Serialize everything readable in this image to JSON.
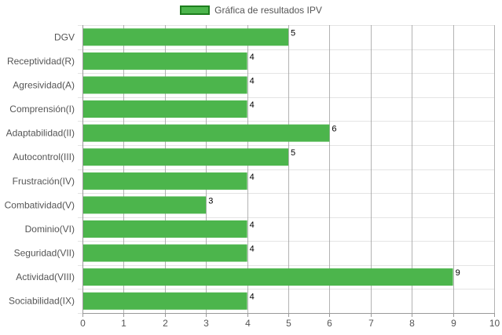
{
  "chart_data": {
    "type": "bar",
    "orientation": "horizontal",
    "categories": [
      "DGV",
      "Receptividad(R)",
      "Agresividad(A)",
      "Comprensión(I)",
      "Adaptabilidad(II)",
      "Autocontrol(III)",
      "Frustración(IV)",
      "Combatividad(V)",
      "Dominio(VI)",
      "Seguridad(VII)",
      "Actividad(VIII)",
      "Sociabilidad(IX)"
    ],
    "series": [
      {
        "name": "Gráfica de resultados IPV",
        "values": [
          5,
          4,
          4,
          4,
          6,
          5,
          4,
          3,
          4,
          4,
          9,
          4
        ]
      }
    ],
    "xlim": [
      0,
      10
    ],
    "x_ticks": [
      "0",
      "1",
      "2",
      "3",
      "4",
      "5",
      "6",
      "7",
      "8",
      "9",
      "10"
    ],
    "grid": true,
    "legend": "top-center",
    "data_labels": true,
    "colors": {
      "bar": "#4CB54C",
      "bar_border": "#1E7D1E",
      "grid": "#e4e4e4",
      "vgrid": "#9a9a9a",
      "axis": "#9a9a9a",
      "label": "#555555",
      "value_label": "#000000"
    }
  }
}
